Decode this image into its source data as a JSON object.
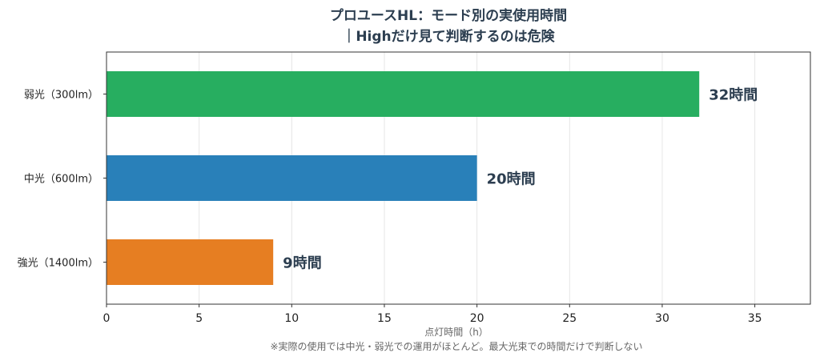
{
  "chart_data": {
    "type": "bar",
    "orientation": "horizontal",
    "title": [
      "プロユースHL：モード別の実使用時間",
      "｜Highだけ見て判断するのは危険"
    ],
    "categories": [
      "弱光（300lm）",
      "中光（600lm）",
      "強光（1400lm）"
    ],
    "values": [
      32,
      20,
      9
    ],
    "data_labels": [
      "32時間",
      "20時間",
      "9時間"
    ],
    "colors": [
      "#27ae60",
      "#2980b9",
      "#e67e22"
    ],
    "xlabel": "点灯時間（h）",
    "note": "※実際の使用では中光・弱光での運用がほとんど。最大光束での時間だけで判断しない",
    "xlim": [
      0,
      38
    ],
    "xticks": [
      0,
      5,
      10,
      15,
      20,
      25,
      30,
      35
    ],
    "grid": "vertical",
    "text_color": "#2c3e50"
  }
}
